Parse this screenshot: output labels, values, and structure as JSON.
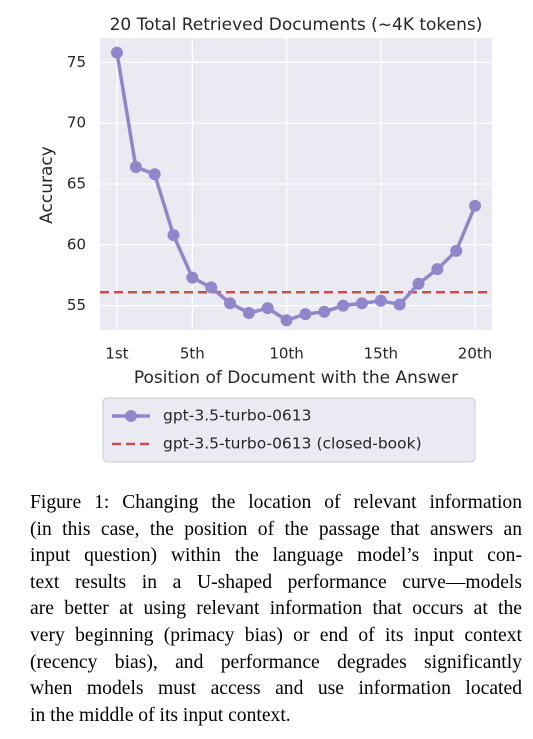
{
  "chart_data": {
    "type": "line",
    "title": "20 Total Retrieved Documents (~4K tokens)",
    "x_label": "Position of Document with the Answer",
    "y_label": "Accuracy",
    "x": [
      1,
      2,
      3,
      4,
      5,
      6,
      7,
      8,
      9,
      10,
      11,
      12,
      13,
      14,
      15,
      16,
      17,
      18,
      19,
      20
    ],
    "series": [
      {
        "name": "gpt-3.5-turbo-0613",
        "color": "#9186c9",
        "values": [
          75.8,
          66.4,
          65.8,
          60.8,
          57.3,
          56.5,
          55.2,
          54.4,
          54.8,
          53.8,
          54.3,
          54.5,
          55.0,
          55.2,
          55.4,
          55.1,
          56.8,
          58.0,
          59.5,
          63.2
        ]
      }
    ],
    "reference_lines": [
      {
        "name": "gpt-3.5-turbo-0613 (closed-book)",
        "color": "#c44e52",
        "value": 56.1,
        "style": "dashed"
      }
    ],
    "xlim": [
      0.1,
      20.9
    ],
    "ylim": [
      53,
      77
    ],
    "xticks": [
      {
        "value": 1,
        "label": "1st"
      },
      {
        "value": 5,
        "label": "5th"
      },
      {
        "value": 10,
        "label": "10th"
      },
      {
        "value": 15,
        "label": "15th"
      },
      {
        "value": 20,
        "label": "20th"
      }
    ],
    "yticks": [
      55,
      60,
      65,
      70,
      75
    ],
    "grid": true,
    "legend": "below"
  },
  "caption": {
    "lines": [
      "Figure 1: Changing the location of relevant information",
      "(in this case, the position of the passage that answers an",
      "input question) within the language model’s input con-",
      "text results in a U-shaped performance curve—models",
      "are better at using relevant information that occurs at the",
      "very beginning (primacy bias) or end of its input context",
      "(recency bias), and performance degrades significantly",
      "when models must access and use information located",
      "in the middle of its input context."
    ]
  }
}
